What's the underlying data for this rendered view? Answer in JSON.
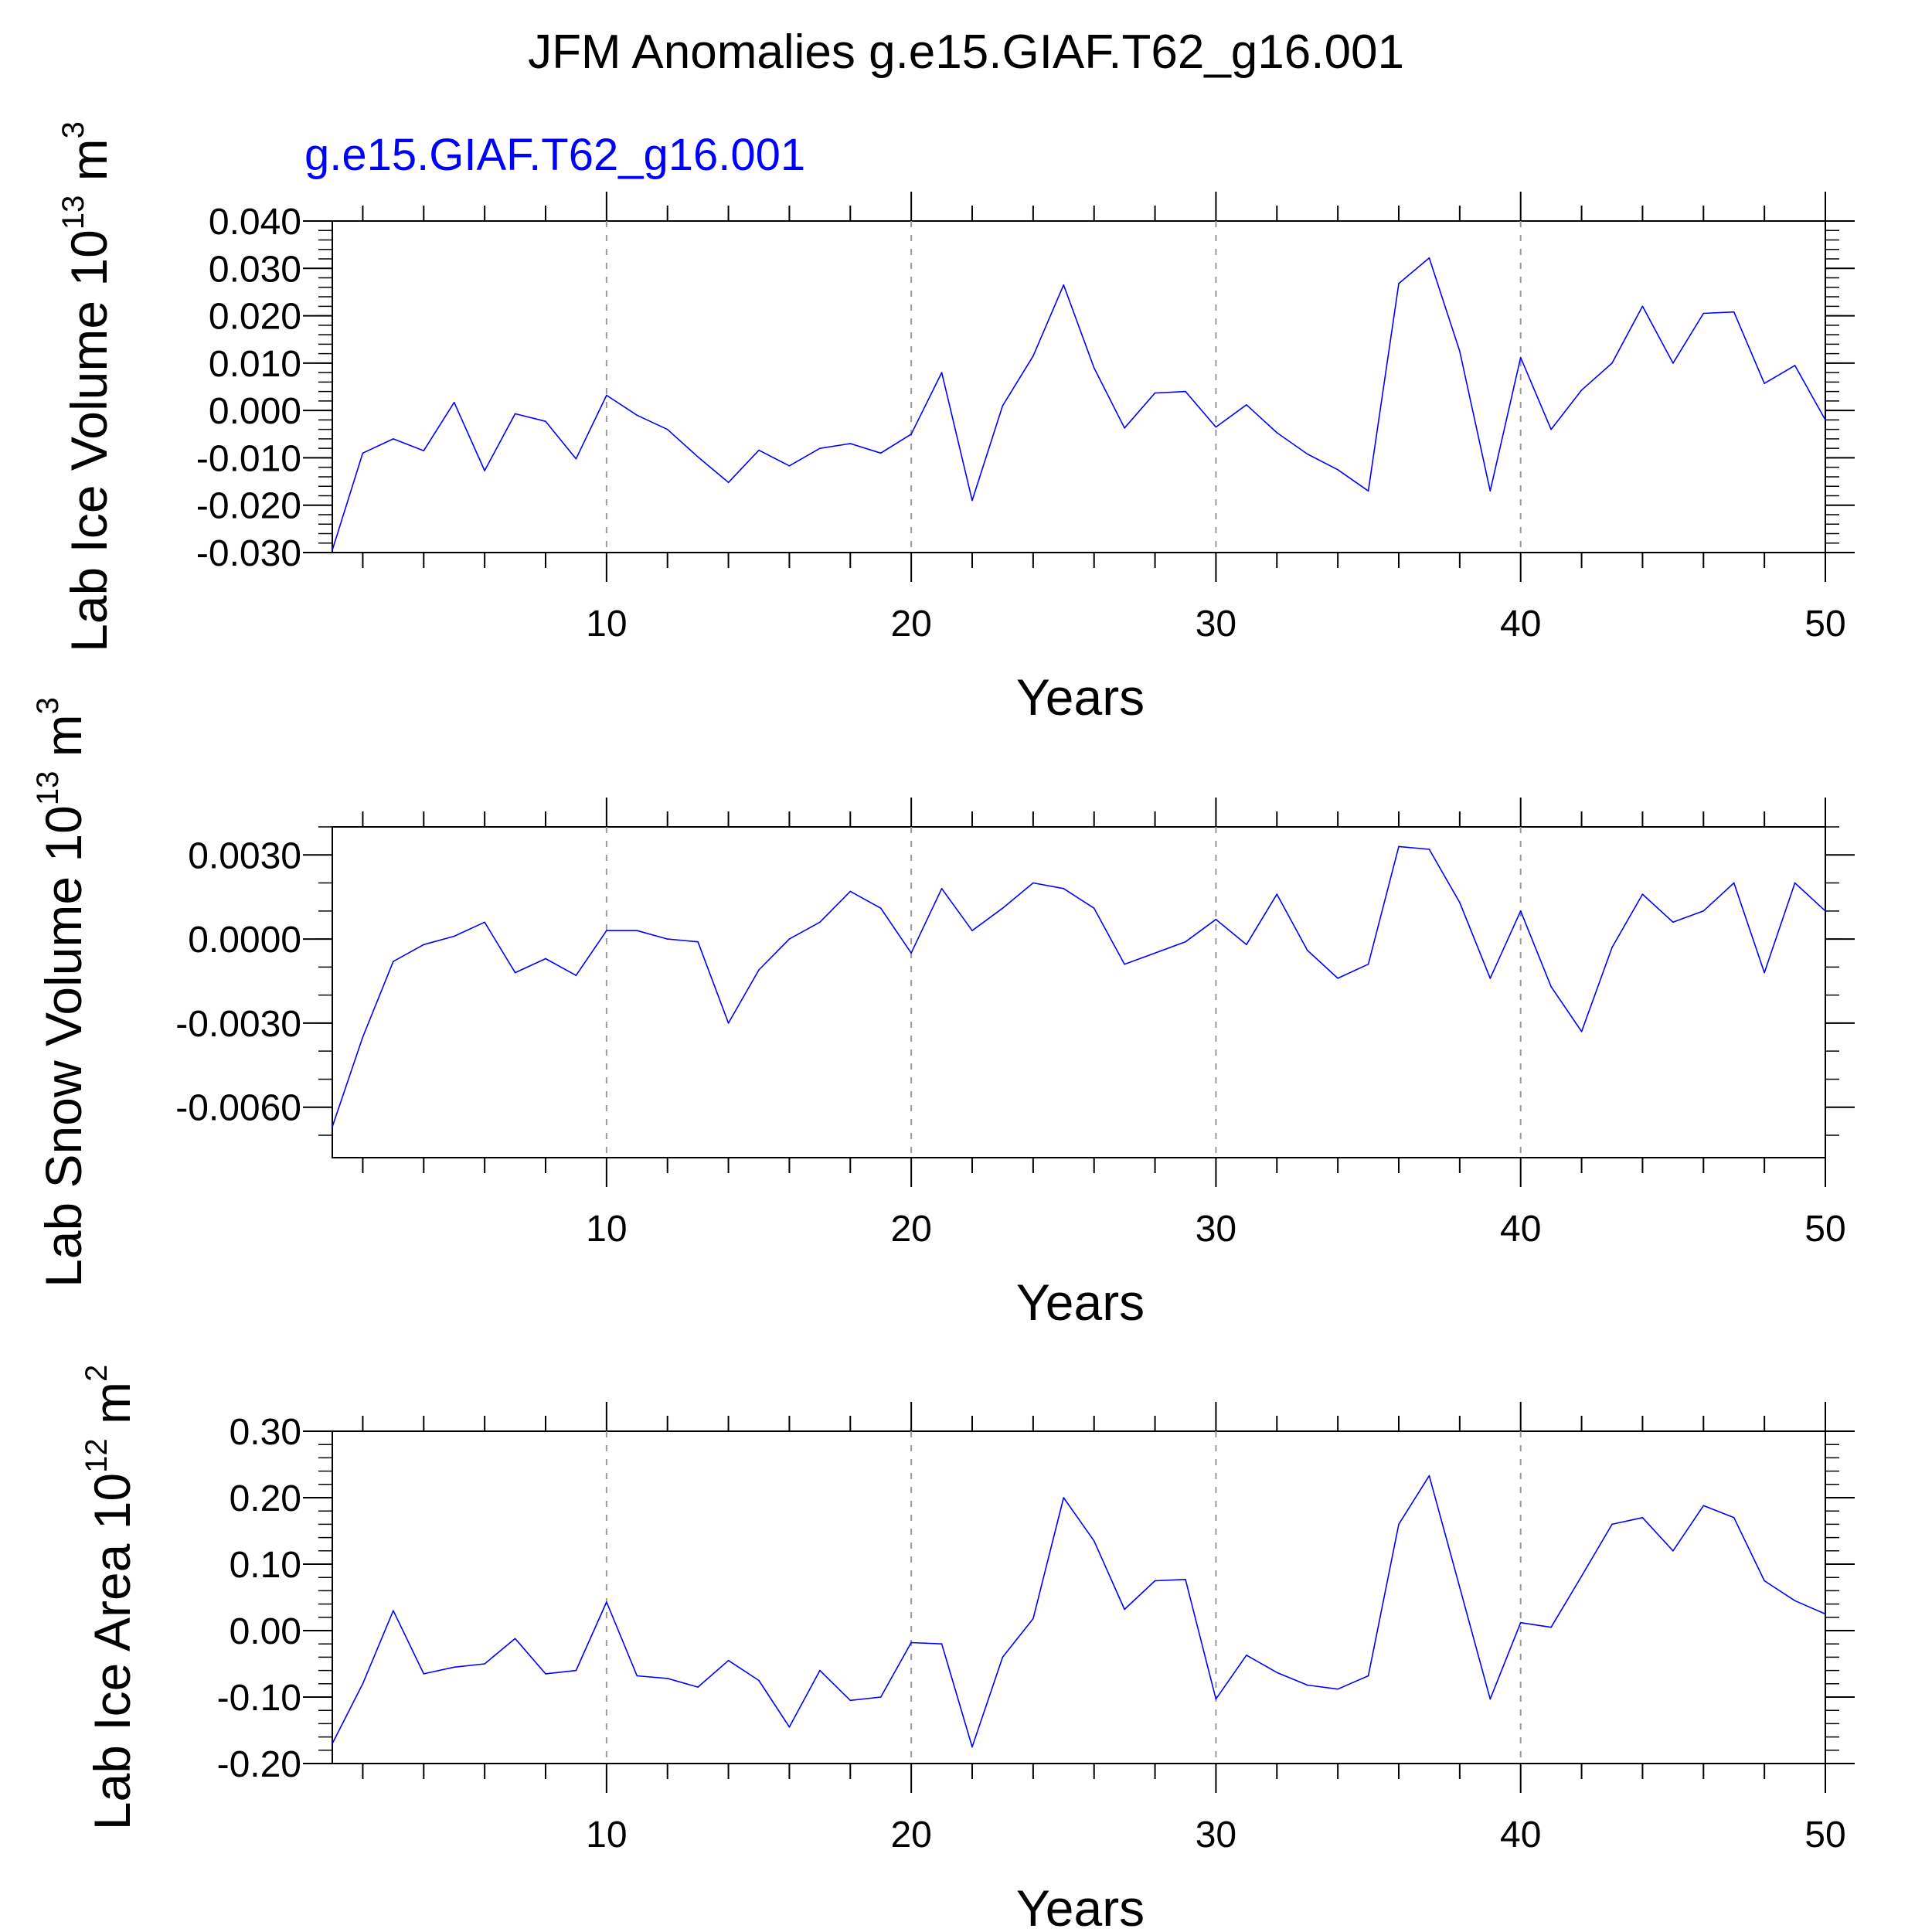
{
  "figure": {
    "title": "JFM Anomalies g.e15.GIAF.T62_g16.001",
    "subtitle": "g.e15.GIAF.T62_g16.001",
    "line_color": "#0000ff"
  },
  "chart_data": [
    {
      "type": "line",
      "xlabel": "Years",
      "ylabel": {
        "text": "Lab Ice Volume 10",
        "exp": "13",
        "unit": " m",
        "unit_exp": "3"
      },
      "xlim": [
        1,
        50
      ],
      "ylim": [
        -0.03,
        0.04
      ],
      "yticks": [
        {
          "v": 0.04,
          "label": "0.040"
        },
        {
          "v": 0.03,
          "label": "0.030"
        },
        {
          "v": 0.02,
          "label": "0.020"
        },
        {
          "v": 0.01,
          "label": "0.010"
        },
        {
          "v": 0.0,
          "label": "0.000"
        },
        {
          "v": -0.01,
          "label": "-0.010"
        },
        {
          "v": -0.02,
          "label": "-0.020"
        },
        {
          "v": -0.03,
          "label": "-0.030"
        }
      ],
      "yminor": 0.002,
      "xticks": [
        10,
        20,
        30,
        40,
        50
      ],
      "gridlines_x": [
        10,
        20,
        30,
        40
      ],
      "series": [
        {
          "color": "#0000ff",
          "x": [
            1,
            2,
            3,
            4,
            5,
            6,
            7,
            8,
            9,
            10,
            11,
            12,
            13,
            14,
            15,
            16,
            17,
            18,
            19,
            20,
            21,
            22,
            23,
            24,
            25,
            26,
            27,
            28,
            29,
            30,
            31,
            32,
            33,
            34,
            35,
            36,
            37,
            38,
            39,
            40,
            41,
            42,
            43,
            44,
            45,
            46,
            47,
            48,
            49,
            50
          ],
          "y": [
            -0.0295,
            -0.009,
            -0.006,
            -0.0085,
            0.0017,
            -0.0127,
            -0.0007,
            -0.0023,
            -0.0102,
            0.0032,
            -0.001,
            -0.004,
            -0.0098,
            -0.0152,
            -0.0084,
            -0.0117,
            -0.008,
            -0.007,
            -0.009,
            -0.005,
            0.008,
            -0.019,
            0.001,
            0.0115,
            0.0265,
            0.009,
            -0.0037,
            0.0037,
            0.004,
            -0.0035,
            0.0012,
            -0.0047,
            -0.0092,
            -0.0125,
            -0.017,
            0.0268,
            0.0322,
            0.0125,
            -0.017,
            0.0112,
            -0.004,
            0.0043,
            0.01,
            0.022,
            0.01,
            0.0205,
            0.0208,
            0.0057,
            0.0095,
            -0.002
          ]
        }
      ]
    },
    {
      "type": "line",
      "xlabel": "Years",
      "ylabel": {
        "text": "Lab Snow Volume 10",
        "exp": "13",
        "unit": " m",
        "unit_exp": "3"
      },
      "xlim": [
        1,
        50
      ],
      "ylim": [
        -0.0078,
        0.004
      ],
      "yticks": [
        {
          "v": 0.003,
          "label": "0.0030"
        },
        {
          "v": 0.0,
          "label": "0.0000"
        },
        {
          "v": -0.003,
          "label": "-0.0030"
        },
        {
          "v": -0.006,
          "label": "-0.0060"
        }
      ],
      "yminor": 0.001,
      "xticks": [
        10,
        20,
        30,
        40,
        50
      ],
      "gridlines_x": [
        10,
        20,
        30,
        40
      ],
      "series": [
        {
          "color": "#0000ff",
          "x": [
            1,
            2,
            3,
            4,
            5,
            6,
            7,
            8,
            9,
            10,
            11,
            12,
            13,
            14,
            15,
            16,
            17,
            18,
            19,
            20,
            21,
            22,
            23,
            24,
            25,
            26,
            27,
            28,
            29,
            30,
            31,
            32,
            33,
            34,
            35,
            36,
            37,
            38,
            39,
            40,
            41,
            42,
            43,
            44,
            45,
            46,
            47,
            48,
            49,
            50
          ],
          "y": [
            -0.0067,
            -0.0035,
            -0.0008,
            -0.0002,
            0.0001,
            0.0006,
            -0.0012,
            -0.0007,
            -0.0013,
            0.0003,
            0.0003,
            0.0,
            -0.0001,
            -0.003,
            -0.0011,
            0.0,
            0.0006,
            0.0017,
            0.0011,
            -0.0005,
            0.0018,
            0.0003,
            0.0011,
            0.002,
            0.0018,
            0.0011,
            -0.0009,
            -0.0005,
            -0.0001,
            0.0007,
            -0.0002,
            0.0016,
            -0.0004,
            -0.0014,
            -0.0009,
            0.0033,
            0.0032,
            0.0013,
            -0.0014,
            0.001,
            -0.0017,
            -0.0033,
            -0.0003,
            0.0016,
            0.0006,
            0.001,
            0.002,
            -0.0012,
            0.002,
            0.001
          ]
        }
      ]
    },
    {
      "type": "line",
      "xlabel": "Years",
      "ylabel": {
        "text": "Lab Ice Area 10",
        "exp": "12",
        "unit": " m",
        "unit_exp": "2"
      },
      "xlim": [
        1,
        50
      ],
      "ylim": [
        -0.2,
        0.3
      ],
      "yticks": [
        {
          "v": 0.3,
          "label": "0.30"
        },
        {
          "v": 0.2,
          "label": "0.20"
        },
        {
          "v": 0.1,
          "label": "0.10"
        },
        {
          "v": 0.0,
          "label": "0.00"
        },
        {
          "v": -0.1,
          "label": "-0.10"
        },
        {
          "v": -0.2,
          "label": "-0.20"
        }
      ],
      "yminor": 0.02,
      "xticks": [
        10,
        20,
        30,
        40,
        50
      ],
      "gridlines_x": [
        10,
        20,
        30,
        40
      ],
      "series": [
        {
          "color": "#0000ff",
          "x": [
            1,
            2,
            3,
            4,
            5,
            6,
            7,
            8,
            9,
            10,
            11,
            12,
            13,
            14,
            15,
            16,
            17,
            18,
            19,
            20,
            21,
            22,
            23,
            24,
            25,
            26,
            27,
            28,
            29,
            30,
            31,
            32,
            33,
            34,
            35,
            36,
            37,
            38,
            39,
            40,
            41,
            42,
            43,
            44,
            45,
            46,
            47,
            48,
            49,
            50
          ],
          "y": [
            -0.17,
            -0.08,
            0.03,
            -0.065,
            -0.055,
            -0.05,
            -0.012,
            -0.065,
            -0.06,
            0.043,
            -0.068,
            -0.072,
            -0.085,
            -0.045,
            -0.075,
            -0.145,
            -0.06,
            -0.105,
            -0.1,
            -0.018,
            -0.02,
            -0.175,
            -0.04,
            0.018,
            0.2,
            0.135,
            0.032,
            0.075,
            0.077,
            -0.103,
            -0.037,
            -0.063,
            -0.082,
            -0.088,
            -0.068,
            0.16,
            0.233,
            0.065,
            -0.103,
            0.012,
            0.005,
            0.082,
            0.16,
            0.17,
            0.12,
            0.188,
            0.17,
            0.075,
            0.045,
            0.025
          ]
        }
      ]
    }
  ]
}
